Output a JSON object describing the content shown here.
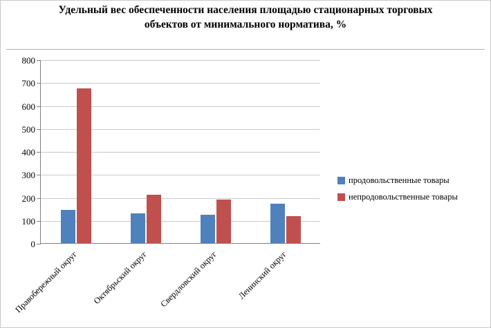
{
  "chart_data": {
    "type": "bar",
    "title": "Удельный вес обеспеченности населения площадью стационарных торговых объектов от минимального норматива, %",
    "categories": [
      "Правобережный округ",
      "Октябрьский округ",
      "Свердловский округ",
      "Ленинский округ"
    ],
    "series": [
      {
        "name": "продовольственные товары",
        "color": "#4F81BD",
        "values": [
          145,
          130,
          122,
          170
        ]
      },
      {
        "name": "непродовольственные товары",
        "color": "#C0504D",
        "values": [
          675,
          210,
          190,
          118
        ]
      }
    ],
    "ylim": [
      0,
      800
    ],
    "ytick_step": 100,
    "grid": true,
    "legend_position": "right"
  }
}
